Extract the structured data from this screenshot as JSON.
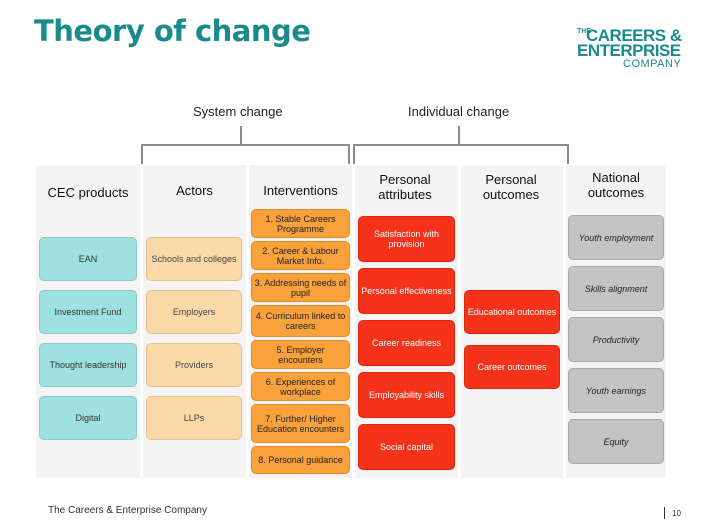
{
  "title": "Theory of change",
  "logo": {
    "the": "THE",
    "line1": "CAREERS &",
    "line2": "ENTERPRISE",
    "line3": "COMPANY"
  },
  "groups": {
    "system": "System change",
    "individual": "Individual change"
  },
  "columns": {
    "cec": {
      "header": "CEC products",
      "items": [
        "EAN",
        "Investment Fund",
        "Thought leadership",
        "Digital"
      ]
    },
    "actors": {
      "header": "Actors",
      "items": [
        "Schools and colleges",
        "Employers",
        "Providers",
        "LLPs"
      ]
    },
    "interventions": {
      "header": "Interventions",
      "items": [
        "1. Stable Careers Programme",
        "2. Career & Labour Market Info.",
        "3. Addressing needs of pupil",
        "4. Curriculum linked to careers",
        "5. Employer encounters",
        "6. Experiences of workplace",
        "7. Further/ Higher Education encounters",
        "8. Personal guidance"
      ]
    },
    "attributes": {
      "header": "Personal attributes",
      "items": [
        "Satisfaction with provision",
        "Personal effectiveness",
        "Career readiness",
        "Employability skills",
        "Social capital"
      ]
    },
    "outcomes": {
      "header": "Personal outcomes",
      "items": [
        "Educational outcomes",
        "Career outcomes"
      ]
    },
    "national": {
      "header": "National outcomes",
      "items": [
        "Youth employment",
        "Skills alignment",
        "Productivity",
        "Youth earnings",
        "Equity"
      ]
    }
  },
  "colors": {
    "teal": "#9fe0e0",
    "peach": "#fcd9a8",
    "orange": "#f9a13a",
    "red": "#f5331a",
    "grey": "#c4c4c4",
    "brand": "#1a8a8c"
  },
  "footer": {
    "company": "The Careers & Enterprise Company",
    "page": "10"
  }
}
